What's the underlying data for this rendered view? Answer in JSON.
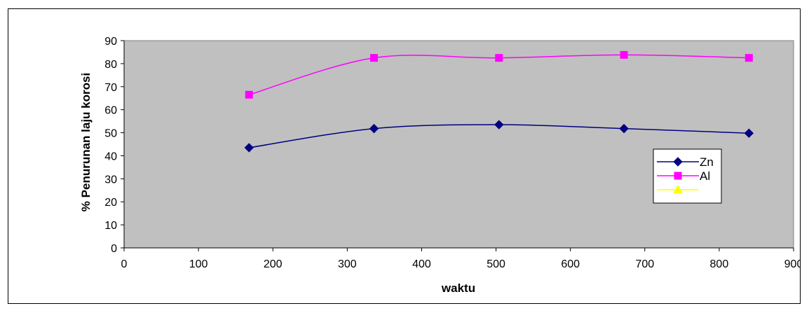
{
  "chart_data": {
    "type": "line",
    "title": "",
    "xlabel": "waktu",
    "ylabel": "% Penurunan laju korosi",
    "xlim": [
      0,
      900
    ],
    "ylim": [
      0,
      90
    ],
    "x_ticks": [
      0,
      100,
      200,
      300,
      400,
      500,
      600,
      700,
      800,
      900
    ],
    "y_ticks": [
      0,
      10,
      20,
      30,
      40,
      50,
      60,
      70,
      80,
      90
    ],
    "grid": false,
    "plot_background": "#c0c0c0",
    "legend_position": "right",
    "series": [
      {
        "name": "Zn",
        "color": "#000080",
        "marker": "diamond",
        "smooth": true,
        "x": [
          168,
          336,
          504,
          672,
          840
        ],
        "y": [
          43.5,
          51.8,
          53.5,
          51.8,
          49.8
        ]
      },
      {
        "name": "Al",
        "color": "#ff00ff",
        "marker": "square",
        "smooth": true,
        "x": [
          168,
          336,
          504,
          672,
          840
        ],
        "y": [
          66.5,
          82.5,
          82.5,
          83.8,
          82.5
        ]
      },
      {
        "name": "",
        "color": "#ffff00",
        "marker": "triangle",
        "smooth": true,
        "x": [],
        "y": []
      }
    ]
  }
}
